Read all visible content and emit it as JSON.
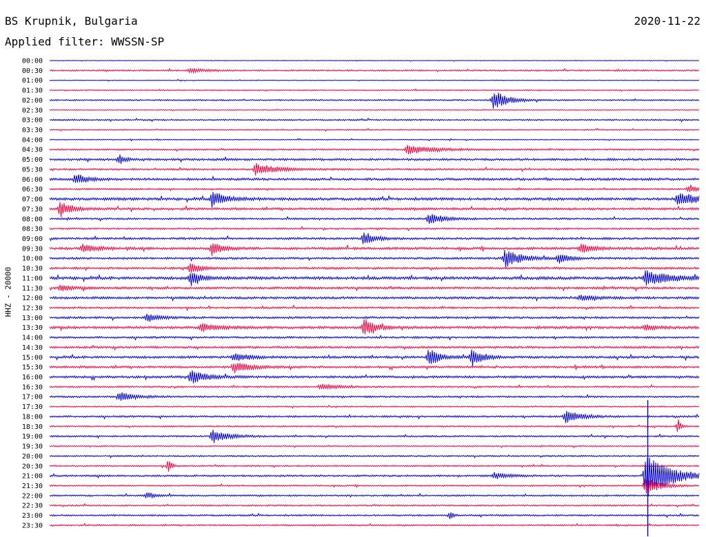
{
  "header": {
    "station": "BS Krupnik, Bulgaria",
    "date": "2020-11-22",
    "filter_label": "Applied filter: WWSSN-SP"
  },
  "chart_data": {
    "type": "line",
    "title": "BS Krupnik, Bulgaria",
    "channel_label": "HHZ - 20000",
    "colors": {
      "even_row": "#0000e0",
      "odd_row": "#ff0040"
    },
    "row_labels": [
      "00:00",
      "00:30",
      "01:00",
      "01:30",
      "02:00",
      "02:30",
      "03:00",
      "03:30",
      "04:00",
      "04:30",
      "05:00",
      "05:30",
      "06:00",
      "06:30",
      "07:00",
      "07:30",
      "08:00",
      "08:30",
      "09:00",
      "09:30",
      "10:00",
      "10:30",
      "11:00",
      "11:30",
      "12:00",
      "12:30",
      "13:00",
      "13:30",
      "14:00",
      "14:30",
      "15:00",
      "15:30",
      "16:00",
      "16:30",
      "17:00",
      "17:30",
      "18:00",
      "18:30",
      "19:00",
      "19:30",
      "20:00",
      "20:30",
      "21:00",
      "21:30",
      "22:00",
      "22:30",
      "23:00",
      "23:30"
    ],
    "noise_levels": [
      0.3,
      0.8,
      0.4,
      0.6,
      0.8,
      0.5,
      0.8,
      0.6,
      0.5,
      0.9,
      1.2,
      1.0,
      1.3,
      0.9,
      1.5,
      1.3,
      1.0,
      0.9,
      1.2,
      1.4,
      1.2,
      1.2,
      1.6,
      1.3,
      1.3,
      1.1,
      1.2,
      1.4,
      1.1,
      1.2,
      1.3,
      1.2,
      1.3,
      0.9,
      1.0,
      0.7,
      1.0,
      0.8,
      0.9,
      0.7,
      0.8,
      0.8,
      1.0,
      0.8,
      0.9,
      0.8,
      0.9,
      0.8
    ],
    "events": [
      {
        "row": "00:30",
        "minute": 6.5,
        "amplitude": 3,
        "duration": 1.5
      },
      {
        "row": "02:00",
        "minute": 20.5,
        "amplitude": 14,
        "duration": 1.2
      },
      {
        "row": "04:30",
        "minute": 16.5,
        "amplitude": 6,
        "duration": 2.5
      },
      {
        "row": "05:00",
        "minute": 3.2,
        "amplitude": 7,
        "duration": 0.5
      },
      {
        "row": "05:30",
        "minute": 9.5,
        "amplitude": 8,
        "duration": 2
      },
      {
        "row": "06:00",
        "minute": 1.2,
        "amplitude": 8,
        "duration": 1
      },
      {
        "row": "06:30",
        "minute": 29.5,
        "amplitude": 4,
        "duration": 1
      },
      {
        "row": "07:00",
        "minute": 7.5,
        "amplitude": 10,
        "duration": 1.2
      },
      {
        "row": "07:00",
        "minute": 29,
        "amplitude": 9,
        "duration": 2
      },
      {
        "row": "07:30",
        "minute": 0.5,
        "amplitude": 11,
        "duration": 1
      },
      {
        "row": "08:00",
        "minute": 17.5,
        "amplitude": 7,
        "duration": 1.5
      },
      {
        "row": "09:00",
        "minute": 14.5,
        "amplitude": 9,
        "duration": 1
      },
      {
        "row": "09:30",
        "minute": 1.5,
        "amplitude": 5,
        "duration": 1.5
      },
      {
        "row": "09:30",
        "minute": 7.5,
        "amplitude": 9,
        "duration": 1
      },
      {
        "row": "09:30",
        "minute": 24.5,
        "amplitude": 6,
        "duration": 1.2
      },
      {
        "row": "10:00",
        "minute": 21,
        "amplitude": 12,
        "duration": 1.5
      },
      {
        "row": "10:00",
        "minute": 23.5,
        "amplitude": 6,
        "duration": 1
      },
      {
        "row": "10:30",
        "minute": 6.5,
        "amplitude": 8,
        "duration": 1
      },
      {
        "row": "11:00",
        "minute": 6.5,
        "amplitude": 9,
        "duration": 1
      },
      {
        "row": "11:00",
        "minute": 27.5,
        "amplitude": 10,
        "duration": 2.5
      },
      {
        "row": "11:30",
        "minute": 0.5,
        "amplitude": 5,
        "duration": 1
      },
      {
        "row": "12:00",
        "minute": 24.5,
        "amplitude": 4,
        "duration": 1.5
      },
      {
        "row": "13:00",
        "minute": 4.5,
        "amplitude": 6,
        "duration": 1
      },
      {
        "row": "13:30",
        "minute": 7,
        "amplitude": 6,
        "duration": 1.5
      },
      {
        "row": "13:30",
        "minute": 14.5,
        "amplitude": 11,
        "duration": 1.2
      },
      {
        "row": "13:30",
        "minute": 27.5,
        "amplitude": 5,
        "duration": 1
      },
      {
        "row": "15:00",
        "minute": 17.5,
        "amplitude": 12,
        "duration": 1
      },
      {
        "row": "15:00",
        "minute": 19.5,
        "amplitude": 12,
        "duration": 1
      },
      {
        "row": "15:00",
        "minute": 8.5,
        "amplitude": 5,
        "duration": 1.5
      },
      {
        "row": "15:30",
        "minute": 8.5,
        "amplitude": 8,
        "duration": 1.5
      },
      {
        "row": "16:00",
        "minute": 6.5,
        "amplitude": 9,
        "duration": 1.5
      },
      {
        "row": "16:30",
        "minute": 12.5,
        "amplitude": 4,
        "duration": 1.5
      },
      {
        "row": "17:00",
        "minute": 3.2,
        "amplitude": 6,
        "duration": 1.5
      },
      {
        "row": "18:00",
        "minute": 23.8,
        "amplitude": 8,
        "duration": 1.5
      },
      {
        "row": "18:30",
        "minute": 29,
        "amplitude": 9,
        "duration": 0.3
      },
      {
        "row": "19:00",
        "minute": 7.5,
        "amplitude": 9,
        "duration": 1.5
      },
      {
        "row": "20:30",
        "minute": 5.5,
        "amplitude": 9,
        "duration": 0.3
      },
      {
        "row": "21:00",
        "minute": 27.5,
        "amplitude": 28,
        "duration": 2.5
      },
      {
        "row": "21:00",
        "minute": 20.5,
        "amplitude": 4,
        "duration": 1.5
      },
      {
        "row": "21:30",
        "minute": 27.5,
        "amplitude": 14,
        "duration": 1.2
      },
      {
        "row": "22:00",
        "minute": 4.5,
        "amplitude": 4,
        "duration": 0.8
      },
      {
        "row": "23:00",
        "minute": 18.5,
        "amplitude": 5,
        "duration": 0.3
      }
    ],
    "spikes": [
      {
        "row": "21:00",
        "minute": 27.6,
        "up": 110,
        "down": 95
      }
    ]
  }
}
